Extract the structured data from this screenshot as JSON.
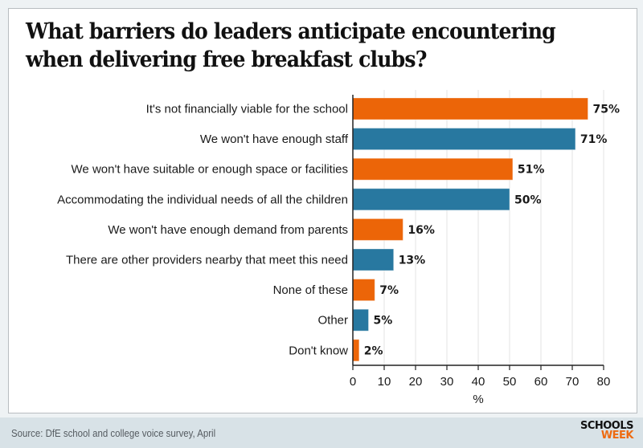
{
  "title": "What barriers do leaders anticipate encountering when delivering free breakfast clubs?",
  "footer": {
    "source": "Source: DfE school and college voice survey, April",
    "logo_line1": "SCHOOLS",
    "logo_line2": "WEEK"
  },
  "colors": {
    "orange": "#ec6508",
    "blue": "#2878a0",
    "grid": "#e3e3e3",
    "axis": "#222222"
  },
  "chart_data": {
    "type": "bar",
    "orientation": "horizontal",
    "title": "What barriers do leaders anticipate encountering when delivering free breakfast clubs?",
    "categories": [
      "It's not financially viable for the school",
      "We won't have enough staff",
      "We won't have suitable or enough space or facilities",
      "Accommodating the individual needs of all the children",
      "We won't have enough demand from parents",
      "There are other providers nearby that meet this need",
      "None of these",
      "Other",
      "Don't know"
    ],
    "values": [
      75,
      71,
      51,
      50,
      16,
      13,
      7,
      5,
      2
    ],
    "value_labels": [
      "75%",
      "71%",
      "51%",
      "50%",
      "16%",
      "13%",
      "7%",
      "5%",
      "2%"
    ],
    "bar_colors": [
      "orange",
      "blue",
      "orange",
      "blue",
      "orange",
      "blue",
      "orange",
      "blue",
      "orange"
    ],
    "xlabel": "%",
    "ylabel": "",
    "xlim": [
      0,
      80
    ],
    "xticks": [
      0,
      10,
      20,
      30,
      40,
      50,
      60,
      70,
      80
    ],
    "grid": "vertical",
    "legend": "none",
    "source": "Source: DfE school and college voice survey, April"
  }
}
